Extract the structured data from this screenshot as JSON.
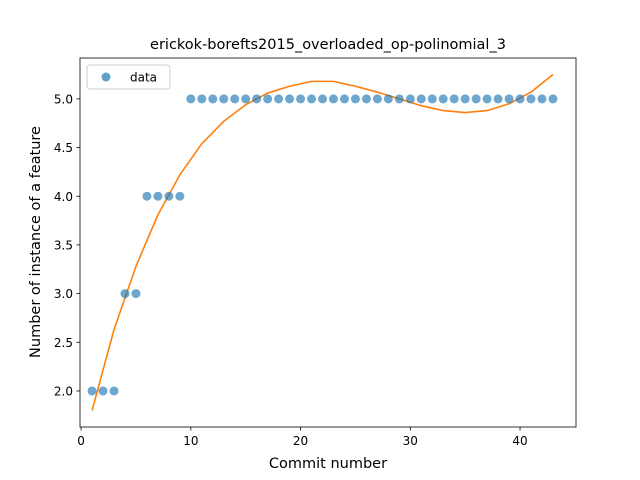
{
  "chart_data": {
    "type": "scatter",
    "title": "erickok-borefts2015_overloaded_op-polinomial_3",
    "xlabel": "Commit number",
    "ylabel": "Number of instance of a feature",
    "xlim": [
      -0.1,
      45.1
    ],
    "ylim": [
      1.63,
      5.42
    ],
    "xticks": [
      0,
      10,
      20,
      30,
      40
    ],
    "yticks": [
      2.0,
      2.5,
      3.0,
      3.5,
      4.0,
      4.5,
      5.0
    ],
    "ytick_labels": [
      "2.0",
      "2.5",
      "3.0",
      "3.5",
      "4.0",
      "4.5",
      "5.0"
    ],
    "grid": false,
    "legend": {
      "position": "top-left",
      "entries": [
        "data"
      ]
    },
    "series": [
      {
        "name": "data",
        "kind": "scatter",
        "color": "#1f77b4",
        "x": [
          1,
          2,
          3,
          4,
          5,
          6,
          7,
          8,
          9,
          10,
          11,
          12,
          13,
          14,
          15,
          16,
          17,
          18,
          19,
          20,
          21,
          22,
          23,
          24,
          25,
          26,
          27,
          28,
          29,
          30,
          31,
          32,
          33,
          34,
          35,
          36,
          37,
          38,
          39,
          40,
          41,
          42,
          43
        ],
        "y": [
          2,
          2,
          2,
          3,
          3,
          4,
          4,
          4,
          4,
          5,
          5,
          5,
          5,
          5,
          5,
          5,
          5,
          5,
          5,
          5,
          5,
          5,
          5,
          5,
          5,
          5,
          5,
          5,
          5,
          5,
          5,
          5,
          5,
          5,
          5,
          5,
          5,
          5,
          5,
          5,
          5,
          5,
          5
        ]
      },
      {
        "kind": "line",
        "color": "#ff7f0e",
        "x": [
          1,
          3,
          5,
          7,
          9,
          11,
          13,
          15,
          17,
          19,
          21,
          23,
          25,
          27,
          29,
          31,
          33,
          35,
          37,
          39,
          41,
          43
        ],
        "y": [
          1.8,
          2.63,
          3.28,
          3.81,
          4.22,
          4.54,
          4.77,
          4.94,
          5.06,
          5.13,
          5.18,
          5.18,
          5.13,
          5.07,
          5.0,
          4.93,
          4.88,
          4.86,
          4.88,
          4.95,
          5.07,
          5.25
        ]
      }
    ]
  }
}
